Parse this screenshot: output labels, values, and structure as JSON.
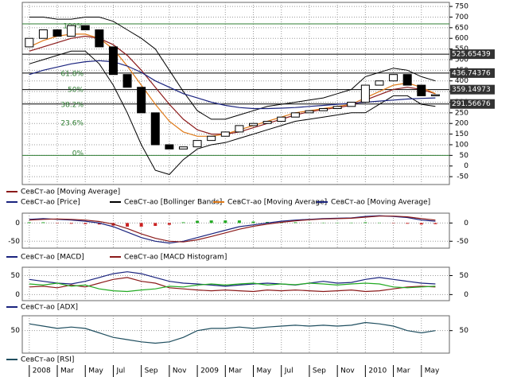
{
  "chart_data": [
    {
      "type": "candlestick",
      "x": [
        0,
        1,
        2,
        3,
        4,
        5,
        6,
        7,
        8,
        9,
        10,
        11,
        12,
        13,
        14,
        15,
        16,
        17,
        18,
        19,
        20,
        21,
        22,
        23,
        24,
        25,
        26,
        27,
        28,
        29
      ],
      "xlim": [
        -0.5,
        30
      ],
      "ylim": [
        -87,
        769
      ],
      "yticks": [
        750,
        700,
        650,
        600,
        550,
        500,
        450,
        400,
        350,
        300,
        250,
        200,
        150,
        100,
        50,
        0,
        -50
      ],
      "price": {
        "name": "СевСт-ао [Price]",
        "open": [
          560,
          600,
          640,
          610,
          660,
          640,
          560,
          430,
          370,
          250,
          100,
          80,
          90,
          120,
          140,
          160,
          190,
          200,
          210,
          230,
          250,
          260,
          270,
          280,
          300,
          380,
          400,
          430,
          380,
          330
        ],
        "close": [
          600,
          640,
          610,
          660,
          640,
          560,
          430,
          370,
          250,
          100,
          80,
          90,
          120,
          140,
          160,
          190,
          200,
          210,
          230,
          250,
          260,
          270,
          280,
          300,
          380,
          400,
          430,
          380,
          330,
          335
        ]
      },
      "bands": {
        "name": "СевСт-ао [Bollinger Bands]",
        "color": "#000000",
        "upper": [
          700,
          700,
          690,
          690,
          700,
          700,
          680,
          640,
          600,
          550,
          450,
          350,
          260,
          220,
          220,
          240,
          260,
          280,
          290,
          300,
          310,
          320,
          340,
          360,
          420,
          440,
          460,
          450,
          420,
          400
        ],
        "lower": [
          480,
          500,
          520,
          540,
          540,
          480,
          380,
          250,
          100,
          -20,
          -40,
          30,
          80,
          100,
          110,
          130,
          150,
          170,
          190,
          210,
          220,
          230,
          240,
          250,
          250,
          290,
          330,
          330,
          290,
          280
        ]
      },
      "series": [
        {
          "name": "СевСт-ао [Moving Average]",
          "color": "#8b1a1a",
          "values": [
            540,
            560,
            580,
            600,
            610,
            600,
            570,
            520,
            450,
            370,
            290,
            220,
            170,
            150,
            150,
            160,
            180,
            200,
            220,
            240,
            255,
            265,
            275,
            285,
            310,
            335,
            360,
            370,
            360,
            340
          ]
        },
        {
          "name": "СевСт-ао [Moving Average]",
          "color": "#e07b1a",
          "values": [
            560,
            590,
            610,
            620,
            620,
            600,
            550,
            470,
            380,
            290,
            210,
            160,
            140,
            140,
            150,
            170,
            190,
            210,
            230,
            250,
            260,
            270,
            280,
            290,
            320,
            350,
            380,
            390,
            370,
            340
          ]
        },
        {
          "name": "СевСт-ао [Moving Average]",
          "color": "#1a237e",
          "values": [
            430,
            450,
            465,
            480,
            490,
            495,
            490,
            470,
            440,
            400,
            370,
            340,
            320,
            300,
            285,
            275,
            270,
            270,
            272,
            275,
            280,
            285,
            290,
            295,
            300,
            305,
            310,
            315,
            318,
            320
          ]
        }
      ],
      "levels": [
        {
          "value": 668,
          "color": "#2e7d32"
        },
        {
          "value": 525.65439,
          "color": "#000000",
          "label": "525.65439"
        },
        {
          "value": 436.74376,
          "color": "#000000",
          "label": "436.74376"
        },
        {
          "value": 359.14973,
          "color": "#000000",
          "label": "359.14973"
        },
        {
          "value": 291.56676,
          "color": "#000000",
          "label": "291.56676"
        },
        {
          "value": 50,
          "color": "#2e7d32"
        }
      ],
      "fib_labels": [
        {
          "value": 657,
          "label": "100%"
        },
        {
          "value": 432,
          "label": "61.8%"
        },
        {
          "value": 357,
          "label": "50%"
        },
        {
          "value": 286,
          "label": "38.2%"
        },
        {
          "value": 200,
          "label": "23.6%"
        },
        {
          "value": 58,
          "label": "0%"
        }
      ]
    },
    {
      "type": "macd",
      "x": [
        0,
        1,
        2,
        3,
        4,
        5,
        6,
        7,
        8,
        9,
        10,
        11,
        12,
        13,
        14,
        15,
        16,
        17,
        18,
        19,
        20,
        21,
        22,
        23,
        24,
        25,
        26,
        27,
        28,
        29
      ],
      "xlim": [
        -0.5,
        30
      ],
      "ylim": [
        -69,
        27
      ],
      "yticks": [
        0,
        -50
      ],
      "series": [
        {
          "name": "СевСт-ао [MACD]",
          "color": "#1a237e",
          "values": [
            10,
            12,
            10,
            8,
            5,
            0,
            -10,
            -25,
            -40,
            -50,
            -55,
            -50,
            -40,
            -30,
            -20,
            -10,
            -5,
            0,
            5,
            8,
            10,
            12,
            13,
            14,
            18,
            20,
            18,
            15,
            8,
            5
          ]
        },
        {
          "name": "СевСт-ао [MACD Histogram]",
          "color": "#8b1a1a",
          "values": [
            8,
            10,
            11,
            10,
            8,
            4,
            -3,
            -15,
            -30,
            -42,
            -50,
            -52,
            -46,
            -37,
            -27,
            -17,
            -9,
            -3,
            2,
            6,
            9,
            11,
            12,
            13,
            16,
            19,
            19,
            17,
            12,
            8
          ]
        }
      ],
      "hist": [
        2,
        2,
        -1,
        -2,
        -3,
        -4,
        -7,
        -10,
        -10,
        -8,
        -5,
        2,
        6,
        7,
        7,
        7,
        4,
        3,
        3,
        2,
        1,
        1,
        1,
        1,
        2,
        1,
        -1,
        -2,
        -4,
        -3
      ]
    },
    {
      "type": "line",
      "x": [
        0,
        1,
        2,
        3,
        4,
        5,
        6,
        7,
        8,
        9,
        10,
        11,
        12,
        13,
        14,
        15,
        16,
        17,
        18,
        19,
        20,
        21,
        22,
        23,
        24,
        25,
        26,
        27,
        28,
        29
      ],
      "xlim": [
        -0.5,
        30
      ],
      "ylim": [
        -16,
        72
      ],
      "yticks": [
        50,
        0
      ],
      "series": [
        {
          "name": "СевСт-ао [ADX]",
          "color": "#1a237e",
          "values": [
            40,
            35,
            30,
            28,
            35,
            45,
            55,
            60,
            55,
            45,
            35,
            30,
            28,
            25,
            22,
            25,
            28,
            30,
            28,
            25,
            30,
            35,
            30,
            32,
            40,
            45,
            40,
            35,
            30,
            28
          ]
        },
        {
          "name": null,
          "color": "#8b1a1a",
          "values": [
            20,
            22,
            18,
            25,
            20,
            30,
            40,
            45,
            35,
            30,
            18,
            15,
            12,
            10,
            12,
            10,
            8,
            12,
            10,
            12,
            10,
            8,
            10,
            12,
            8,
            10,
            15,
            20,
            22,
            20
          ]
        },
        {
          "name": null,
          "color": "#22aa22",
          "values": [
            28,
            25,
            30,
            22,
            25,
            15,
            10,
            8,
            12,
            15,
            22,
            20,
            25,
            28,
            25,
            28,
            30,
            25,
            28,
            26,
            30,
            28,
            25,
            28,
            30,
            28,
            20,
            18,
            20,
            22
          ]
        }
      ]
    },
    {
      "type": "line",
      "x": [
        0,
        1,
        2,
        3,
        4,
        5,
        6,
        7,
        8,
        9,
        10,
        11,
        12,
        13,
        14,
        15,
        16,
        17,
        18,
        19,
        20,
        21,
        22,
        23,
        24,
        25,
        26,
        27,
        28,
        29
      ],
      "xlim": [
        -0.5,
        30
      ],
      "ylim": [
        0,
        83
      ],
      "yticks": [
        50
      ],
      "series": [
        {
          "name": "СевСт-ао [RSI]",
          "color": "#1f4e5f",
          "values": [
            65,
            60,
            55,
            58,
            55,
            45,
            35,
            30,
            25,
            22,
            25,
            35,
            50,
            55,
            55,
            58,
            55,
            58,
            60,
            62,
            60,
            62,
            60,
            62,
            68,
            65,
            60,
            50,
            45,
            50
          ]
        }
      ],
      "xticks": [
        {
          "value": 0,
          "label": "2008"
        },
        {
          "value": 2,
          "label": "Mar"
        },
        {
          "value": 4,
          "label": "May"
        },
        {
          "value": 6,
          "label": "Jul"
        },
        {
          "value": 8,
          "label": "Sep"
        },
        {
          "value": 10,
          "label": "Nov"
        },
        {
          "value": 12,
          "label": "2009"
        },
        {
          "value": 14,
          "label": "Mar"
        },
        {
          "value": 16,
          "label": "May"
        },
        {
          "value": 18,
          "label": "Jul"
        },
        {
          "value": 20,
          "label": "Sep"
        },
        {
          "value": 22,
          "label": "Nov"
        },
        {
          "value": 24,
          "label": "2010"
        },
        {
          "value": 26,
          "label": "Mar"
        },
        {
          "value": 28,
          "label": "May"
        }
      ]
    }
  ]
}
